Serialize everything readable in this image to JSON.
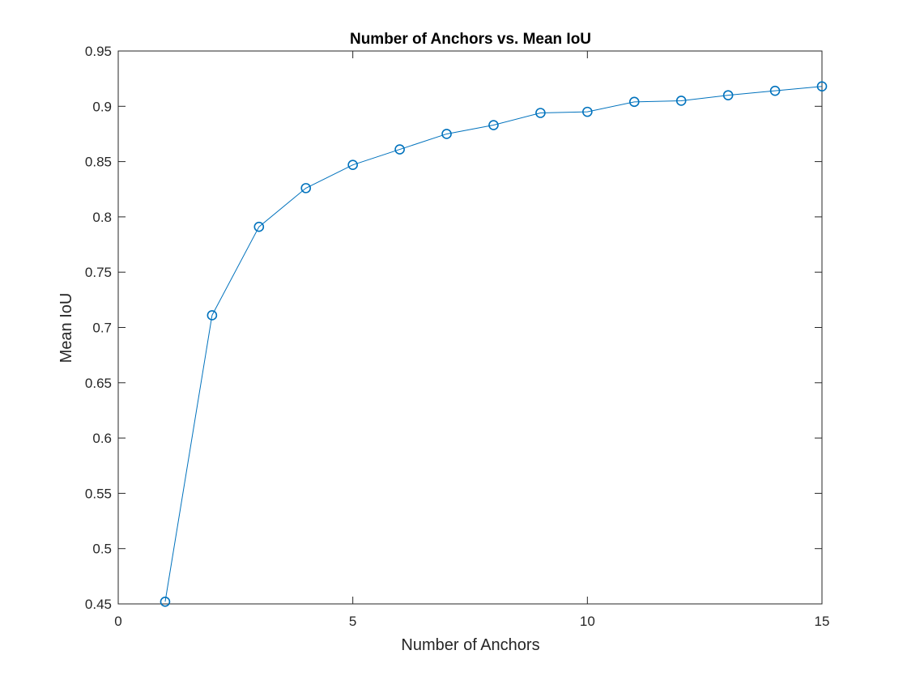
{
  "chart_data": {
    "type": "line",
    "title": "Number of Anchors vs. Mean IoU",
    "xlabel": "Number of Anchors",
    "ylabel": "Mean IoU",
    "xlim": [
      0,
      15
    ],
    "ylim": [
      0.45,
      0.95
    ],
    "x_ticks": [
      "0",
      "5",
      "10",
      "15"
    ],
    "y_ticks": [
      "0.45",
      "0.5",
      "0.55",
      "0.6",
      "0.65",
      "0.7",
      "0.75",
      "0.8",
      "0.85",
      "0.9",
      "0.95"
    ],
    "grid": false,
    "marker": "circle",
    "series": [
      {
        "color": "#0072BD",
        "x": [
          1,
          2,
          3,
          4,
          5,
          6,
          7,
          8,
          9,
          10,
          11,
          12,
          13,
          14,
          15
        ],
        "y": [
          0.452,
          0.711,
          0.791,
          0.826,
          0.847,
          0.861,
          0.875,
          0.883,
          0.894,
          0.895,
          0.904,
          0.905,
          0.91,
          0.914,
          0.918
        ]
      }
    ]
  }
}
